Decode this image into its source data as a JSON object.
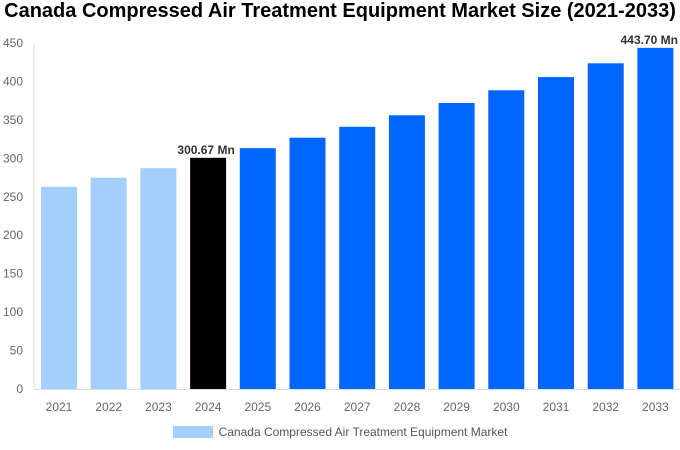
{
  "chart_data": {
    "type": "bar",
    "title": "Canada Compressed Air Treatment Equipment Market Size (2021-2033)",
    "xlabel": "",
    "ylabel": "",
    "ylim": [
      0,
      450
    ],
    "yticks": [
      0,
      50,
      100,
      150,
      200,
      250,
      300,
      350,
      400,
      450
    ],
    "grid": false,
    "legend_position": "bottom",
    "categories": [
      "2021",
      "2022",
      "2023",
      "2024",
      "2025",
      "2026",
      "2027",
      "2028",
      "2029",
      "2030",
      "2031",
      "2032",
      "2033"
    ],
    "series": [
      {
        "name": "Canada Compressed Air Treatment Equipment Market",
        "values": [
          263,
          274.8,
          287.2,
          300.67,
          313.2,
          326.8,
          341,
          356,
          372,
          388.5,
          405.7,
          423.6,
          443.7
        ]
      }
    ],
    "bar_colors": [
      "#a3cfff",
      "#a3cfff",
      "#a3cfff",
      "#000000",
      "#0066ff",
      "#0066ff",
      "#0066ff",
      "#0066ff",
      "#0066ff",
      "#0066ff",
      "#0066ff",
      "#0066ff",
      "#0066ff"
    ],
    "data_labels": [
      {
        "category": "2024",
        "text": "300.67 Mn"
      },
      {
        "category": "2033",
        "text": "443.70 Mn"
      }
    ]
  }
}
